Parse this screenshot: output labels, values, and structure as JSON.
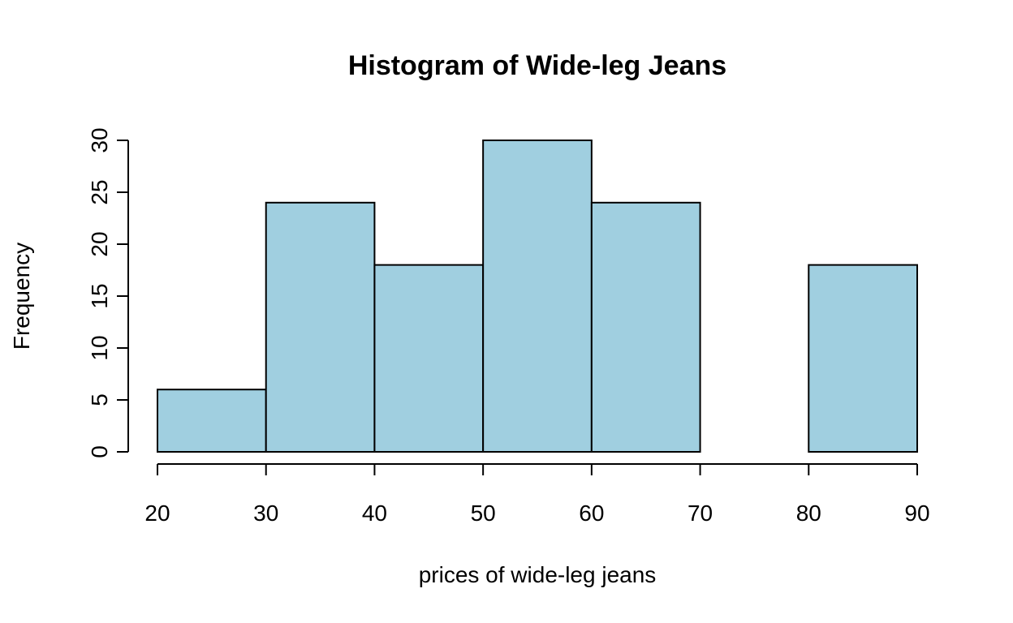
{
  "chart_data": {
    "type": "bar",
    "subtype": "histogram",
    "title": "Histogram of Wide-leg Jeans",
    "xlabel": "prices of wide-leg jeans",
    "ylabel": "Frequency",
    "bins": [
      {
        "from": 20,
        "to": 30,
        "count": 6
      },
      {
        "from": 30,
        "to": 40,
        "count": 24
      },
      {
        "from": 40,
        "to": 50,
        "count": 18
      },
      {
        "from": 50,
        "to": 60,
        "count": 30
      },
      {
        "from": 60,
        "to": 70,
        "count": 24
      },
      {
        "from": 70,
        "to": 80,
        "count": 0
      },
      {
        "from": 80,
        "to": 90,
        "count": 18
      }
    ],
    "xlim": [
      20,
      90
    ],
    "ylim": [
      0,
      30
    ],
    "x_ticks": [
      "20",
      "30",
      "40",
      "50",
      "60",
      "70",
      "80",
      "90"
    ],
    "y_ticks": [
      "0",
      "5",
      "10",
      "15",
      "20",
      "25",
      "30"
    ],
    "grid": false,
    "bar_color": "#a0cfe0",
    "edge_color": "#000000"
  }
}
